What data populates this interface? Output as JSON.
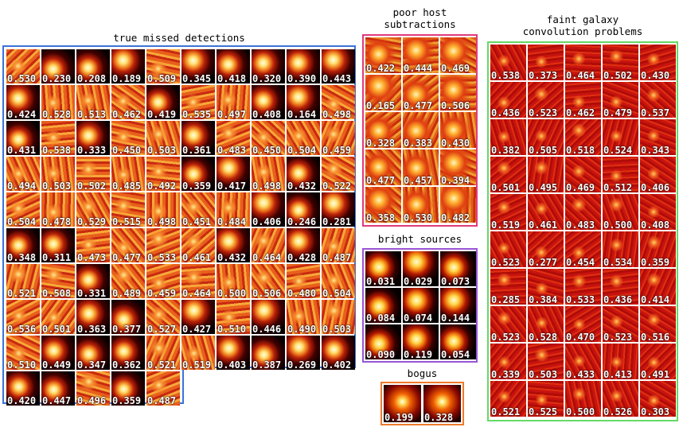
{
  "colors": {
    "true_missed": "#3b73d9",
    "poor_host": "#e03a7d",
    "bright": "#9a55d6",
    "bogus": "#f07a2a",
    "faint": "#66d966"
  },
  "panels": {
    "true_missed": {
      "title": "true missed detections",
      "values": [
        [
          "0.530",
          "0.230",
          "0.208",
          "0.189",
          "0.509",
          "0.345",
          "0.418",
          "0.320",
          "0.390",
          "0.443"
        ],
        [
          "0.424",
          "0.528",
          "0.513",
          "0.462",
          "0.419",
          "0.535",
          "0.497",
          "0.408",
          "0.164",
          "0.498"
        ],
        [
          "0.431",
          "0.538",
          "0.333",
          "0.450",
          "0.503",
          "0.361",
          "0.483",
          "0.450",
          "0.504",
          "0.459"
        ],
        [
          "0.494",
          "0.503",
          "0.502",
          "0.485",
          "0.492",
          "0.359",
          "0.417",
          "0.498",
          "0.432",
          "0.522"
        ],
        [
          "0.504",
          "0.478",
          "0.529",
          "0.515",
          "0.498",
          "0.451",
          "0.484",
          "0.406",
          "0.246",
          "0.281"
        ],
        [
          "0.348",
          "0.311",
          "0.473",
          "0.477",
          "0.533",
          "0.461",
          "0.432",
          "0.464",
          "0.428",
          "0.487"
        ],
        [
          "0.521",
          "0.508",
          "0.331",
          "0.489",
          "0.459",
          "0.464",
          "0.500",
          "0.506",
          "0.480",
          "0.504"
        ],
        [
          "0.536",
          "0.501",
          "0.363",
          "0.377",
          "0.527",
          "0.427",
          "0.510",
          "0.446",
          "0.490",
          "0.503"
        ],
        [
          "0.510",
          "0.449",
          "0.347",
          "0.362",
          "0.521",
          "0.519",
          "0.403",
          "0.387",
          "0.269",
          "0.402"
        ],
        [
          "0.420",
          "0.447",
          "0.496",
          "0.359",
          "0.487"
        ]
      ]
    },
    "poor_host": {
      "title": "poor host\nsubtractions",
      "values": [
        [
          "0.422",
          "0.444",
          "0.469"
        ],
        [
          "0.165",
          "0.477",
          "0.506"
        ],
        [
          "0.328",
          "0.383",
          "0.430"
        ],
        [
          "0.477",
          "0.457",
          "0.394"
        ],
        [
          "0.358",
          "0.530",
          "0.482"
        ]
      ]
    },
    "bright": {
      "title": "bright sources",
      "values": [
        [
          "0.031",
          "0.029",
          "0.073"
        ],
        [
          "0.084",
          "0.074",
          "0.144"
        ],
        [
          "0.090",
          "0.119",
          "0.054"
        ]
      ]
    },
    "bogus": {
      "title": "bogus",
      "values": [
        [
          "0.199",
          "0.328"
        ]
      ]
    },
    "faint": {
      "title": "faint galaxy\nconvolution problems",
      "values": [
        [
          "0.538",
          "0.373",
          "0.464",
          "0.502",
          "0.430"
        ],
        [
          "0.436",
          "0.523",
          "0.462",
          "0.479",
          "0.537"
        ],
        [
          "0.382",
          "0.505",
          "0.518",
          "0.524",
          "0.343"
        ],
        [
          "0.501",
          "0.495",
          "0.469",
          "0.512",
          "0.406"
        ],
        [
          "0.519",
          "0.461",
          "0.483",
          "0.500",
          "0.408"
        ],
        [
          "0.523",
          "0.277",
          "0.454",
          "0.534",
          "0.359"
        ],
        [
          "0.285",
          "0.384",
          "0.533",
          "0.436",
          "0.414"
        ],
        [
          "0.523",
          "0.528",
          "0.470",
          "0.523",
          "0.516"
        ],
        [
          "0.339",
          "0.503",
          "0.433",
          "0.413",
          "0.491"
        ],
        [
          "0.521",
          "0.525",
          "0.500",
          "0.526",
          "0.303"
        ]
      ]
    }
  }
}
